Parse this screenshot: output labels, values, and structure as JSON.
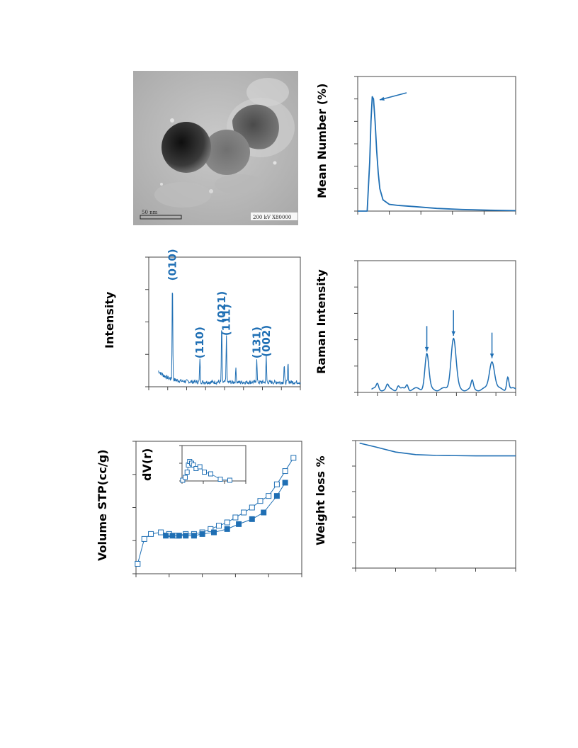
{
  "colors": {
    "line": "#1f6fb4",
    "axis": "#444444",
    "text": "#000000"
  },
  "tem": {
    "scale_label": "50 nm",
    "info_label": "200 kV  X80000"
  },
  "panels": {
    "mean_number": {
      "ylabel": "Mean Number (%)",
      "chart_data": {
        "type": "line",
        "ylabel": "Mean Number (%)",
        "xlim": [
          0,
          5
        ],
        "ylim": [
          0,
          6
        ],
        "x": [
          0,
          0.3,
          0.38,
          0.42,
          0.46,
          0.5,
          0.55,
          0.6,
          0.65,
          0.7,
          0.8,
          1.0,
          1.3,
          1.8,
          2.5,
          3.3,
          4.2,
          5.0
        ],
        "y": [
          0,
          0,
          2.2,
          4.0,
          5.1,
          5.0,
          4.0,
          2.7,
          1.7,
          1.0,
          0.5,
          0.3,
          0.25,
          0.2,
          0.12,
          0.07,
          0.04,
          0.02
        ],
        "annotations": [
          "peak-arrow"
        ]
      }
    },
    "xrd": {
      "ylabel": "Intensity",
      "chart_data": {
        "type": "line",
        "ylabel": "Intensity",
        "xlim": [
          0,
          8
        ],
        "ylim": [
          0,
          4
        ],
        "peaks": [
          {
            "label": "(010)",
            "x": 1.25,
            "h": 3.15
          },
          {
            "label": "(110)",
            "x": 2.7,
            "h": 0.75
          },
          {
            "label": "(021)",
            "x": 3.85,
            "h": 1.85
          },
          {
            "label": "(111)",
            "x": 4.1,
            "h": 1.45
          },
          {
            "label": "(131)",
            "x": 5.7,
            "h": 0.75
          },
          {
            "label": "(002)",
            "x": 6.2,
            "h": 0.8
          }
        ],
        "minor_peaks": [
          {
            "x": 4.6,
            "h": 0.45
          },
          {
            "x": 7.15,
            "h": 0.55
          },
          {
            "x": 7.35,
            "h": 0.6
          }
        ]
      }
    },
    "raman": {
      "ylabel": "Raman Intensity",
      "chart_data": {
        "type": "line",
        "ylabel": "Raman Intensity",
        "xlim": [
          0,
          8
        ],
        "ylim": [
          0,
          5
        ],
        "peaks": [
          {
            "x": 3.5,
            "h": 1.35,
            "w": 0.14
          },
          {
            "x": 4.85,
            "h": 1.95,
            "w": 0.18
          },
          {
            "x": 6.8,
            "h": 1.1,
            "w": 0.18
          }
        ],
        "ripples": [
          {
            "x": 1.0,
            "h": 0.2
          },
          {
            "x": 1.5,
            "h": 0.15
          },
          {
            "x": 2.05,
            "h": 0.15
          },
          {
            "x": 2.5,
            "h": 0.2
          },
          {
            "x": 5.8,
            "h": 0.3
          },
          {
            "x": 7.6,
            "h": 0.5
          }
        ],
        "annotations": [
          "arrow-peak-1",
          "arrow-peak-2",
          "arrow-peak-3"
        ]
      }
    },
    "bet": {
      "ylabel": "Volume STP(cc/g)",
      "inset_ylabel": "dV(r)",
      "chart_data": {
        "type": "scatter",
        "ylabel": "Volume STP(cc/g)",
        "xlim": [
          0,
          1
        ],
        "ylim": [
          0,
          4
        ],
        "series": [
          {
            "marker": "open-square",
            "x": [
              0.01,
              0.05,
              0.09,
              0.15,
              0.2,
              0.25,
              0.3,
              0.35,
              0.4,
              0.45,
              0.5,
              0.55,
              0.6,
              0.65,
              0.7,
              0.75,
              0.8,
              0.85,
              0.9,
              0.95
            ],
            "y": [
              0.3,
              1.05,
              1.2,
              1.25,
              1.2,
              1.15,
              1.2,
              1.2,
              1.25,
              1.35,
              1.45,
              1.55,
              1.7,
              1.85,
              2.0,
              2.2,
              2.35,
              2.7,
              3.1,
              3.5
            ]
          },
          {
            "marker": "filled-square",
            "x": [
              0.18,
              0.22,
              0.26,
              0.3,
              0.35,
              0.4,
              0.47,
              0.55,
              0.62,
              0.7,
              0.77,
              0.85,
              0.9
            ],
            "y": [
              1.15,
              1.15,
              1.15,
              1.15,
              1.15,
              1.2,
              1.25,
              1.35,
              1.5,
              1.65,
              1.85,
              2.35,
              2.75
            ]
          }
        ],
        "inset": {
          "type": "scatter",
          "ylabel": "dV(r)",
          "xlim": [
            0,
            1
          ],
          "ylim": [
            0,
            1
          ],
          "x": [
            0.01,
            0.05,
            0.08,
            0.1,
            0.12,
            0.15,
            0.18,
            0.22,
            0.28,
            0.35,
            0.45,
            0.6,
            0.75
          ],
          "y": [
            0.02,
            0.1,
            0.25,
            0.45,
            0.55,
            0.5,
            0.45,
            0.35,
            0.4,
            0.25,
            0.2,
            0.05,
            0.02
          ]
        }
      }
    },
    "tga": {
      "ylabel": "Weight loss %",
      "chart_data": {
        "type": "line",
        "ylabel": "Weight loss %",
        "xlim": [
          0,
          4
        ],
        "ylim": [
          0,
          5
        ],
        "x": [
          0.1,
          0.5,
          1.0,
          1.5,
          2.0,
          2.5,
          3.0,
          3.5,
          4.0
        ],
        "y": [
          4.9,
          4.75,
          4.55,
          4.45,
          4.42,
          4.41,
          4.4,
          4.4,
          4.4
        ]
      }
    }
  }
}
